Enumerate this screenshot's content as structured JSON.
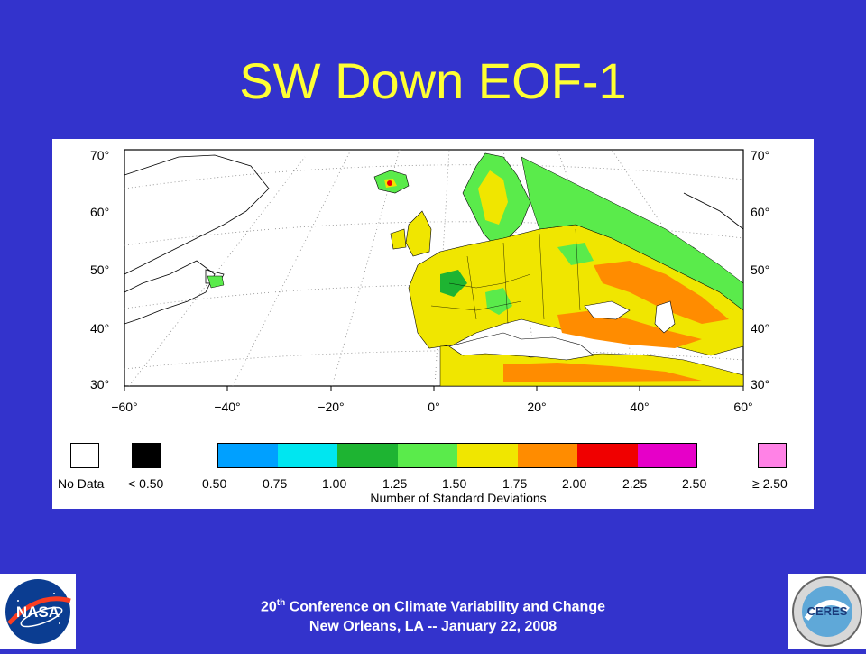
{
  "slide": {
    "title": "SW Down EOF-1"
  },
  "map": {
    "lat_labels": [
      "70°",
      "60°",
      "50°",
      "40°",
      "30°"
    ],
    "lon_labels": [
      "−60°",
      "−40°",
      "−20°",
      "0°",
      "20°",
      "40°",
      "60°"
    ],
    "colors": {
      "no_data": "#ffffff",
      "lt_050": "#000000",
      "b050_075": "#00a0ff",
      "b075_100": "#00e6f0",
      "b100_125": "#1eb432",
      "b125_150": "#5aeb4b",
      "b150_175": "#f0e600",
      "b175_200": "#ff8c00",
      "b200_225": "#f00000",
      "b225_250": "#e600c8",
      "ge_250": "#ff82e6"
    }
  },
  "colorbar": {
    "no_data_label": "No Data",
    "lt_label": "< 0.50",
    "ticks": [
      "0.50",
      "0.75",
      "1.00",
      "1.25",
      "1.50",
      "1.75",
      "2.00",
      "2.25",
      "2.50"
    ],
    "ge_label": "≥ 2.50",
    "title": "Number of Standard Deviations"
  },
  "footer": {
    "line1_prefix": "20",
    "line1_sup": "th",
    "line1_rest": " Conference on Climate Variability and Change",
    "line2": "New Orleans, LA -- January 22, 2008"
  },
  "logos": {
    "left": "NASA",
    "right": "CERES"
  }
}
